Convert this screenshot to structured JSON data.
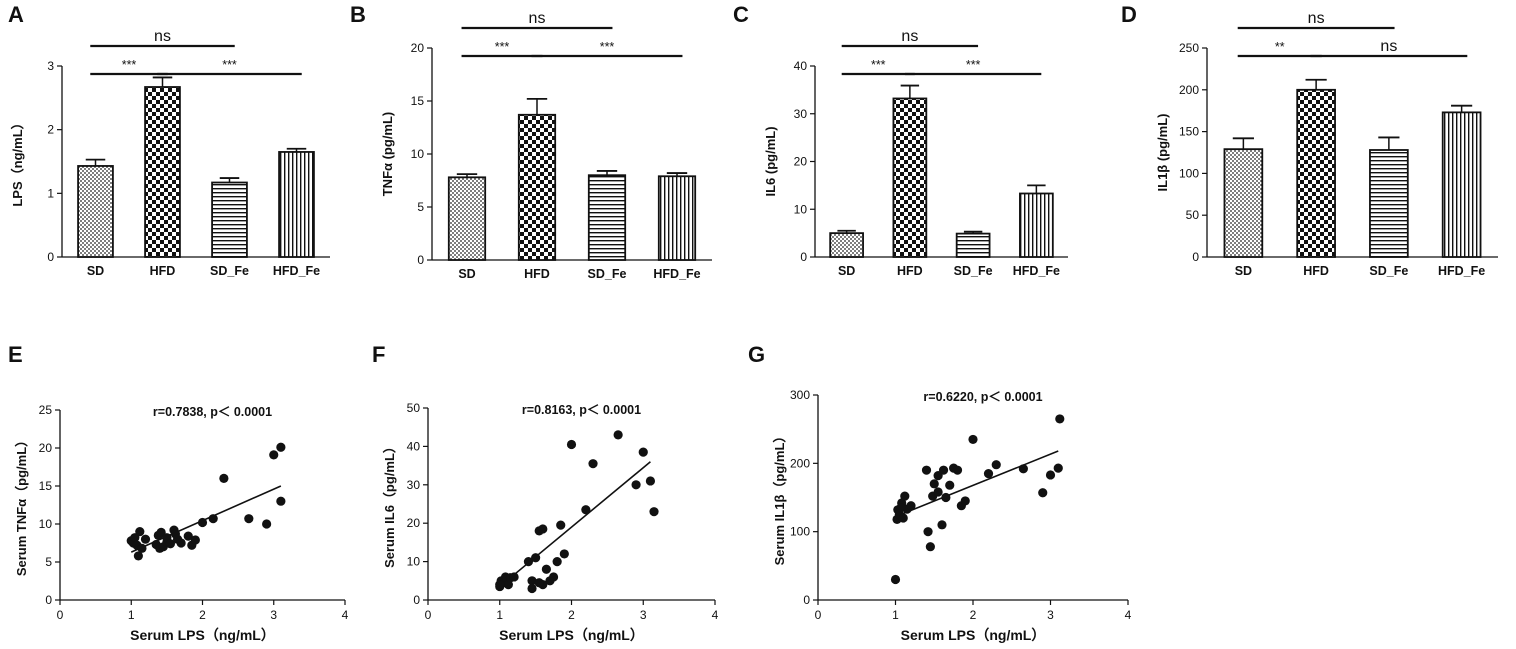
{
  "figure": {
    "shared": {
      "bar_categories": [
        "SD",
        "HFD",
        "SD_Fe",
        "HFD_Fe"
      ],
      "fill_patterns": [
        "dots",
        "checker",
        "horizontal",
        "vertical"
      ],
      "scatter_xlabel": "Serum LPS（ng/mL）",
      "scatter_xticks": [
        "0",
        "1",
        "2",
        "3",
        "4"
      ]
    },
    "stroke_color": "#111111",
    "bar_fill_color": "#ffffff"
  },
  "chart_data": [
    {
      "panel": "A",
      "type": "bar",
      "categories": [
        "SD",
        "HFD",
        "SD_Fe",
        "HFD_Fe"
      ],
      "values": [
        1.43,
        2.67,
        1.17,
        1.65
      ],
      "errors": [
        0.1,
        0.15,
        0.07,
        0.05
      ],
      "ylabel": "LPS（ng/mL）",
      "ylim": [
        0,
        3
      ],
      "yticks": [
        "0",
        "1",
        "2",
        "3"
      ],
      "comparisons": [
        {
          "label": "ns",
          "from": 0,
          "to": 2,
          "level": 1
        },
        {
          "label": "***",
          "from": 0,
          "to": 1,
          "level": 0
        },
        {
          "label": "***",
          "from": 1,
          "to": 3,
          "level": 0
        }
      ]
    },
    {
      "panel": "B",
      "type": "bar",
      "categories": [
        "SD",
        "HFD",
        "SD_Fe",
        "HFD_Fe"
      ],
      "values": [
        7.8,
        13.7,
        8.0,
        7.9
      ],
      "errors": [
        0.3,
        1.5,
        0.4,
        0.3
      ],
      "ylabel": "TNFα (pg/mL)",
      "ylim": [
        0,
        20
      ],
      "yticks": [
        "0",
        "5",
        "10",
        "15",
        "20"
      ],
      "comparisons": [
        {
          "label": "ns",
          "from": 0,
          "to": 2,
          "level": 1
        },
        {
          "label": "***",
          "from": 0,
          "to": 1,
          "level": 0
        },
        {
          "label": "***",
          "from": 1,
          "to": 3,
          "level": 0
        }
      ]
    },
    {
      "panel": "C",
      "type": "bar",
      "categories": [
        "SD",
        "HFD",
        "SD_Fe",
        "HFD_Fe"
      ],
      "values": [
        5.0,
        33.2,
        4.9,
        13.3
      ],
      "errors": [
        0.5,
        2.7,
        0.4,
        1.7
      ],
      "ylabel": "IL6 (pg/mL)",
      "ylim": [
        0,
        40
      ],
      "yticks": [
        "0",
        "10",
        "20",
        "30",
        "40"
      ],
      "comparisons": [
        {
          "label": "ns",
          "from": 0,
          "to": 2,
          "level": 1
        },
        {
          "label": "***",
          "from": 0,
          "to": 1,
          "level": 0
        },
        {
          "label": "***",
          "from": 1,
          "to": 3,
          "level": 0
        }
      ]
    },
    {
      "panel": "D",
      "type": "bar",
      "categories": [
        "SD",
        "HFD",
        "SD_Fe",
        "HFD_Fe"
      ],
      "values": [
        129,
        200,
        128,
        173
      ],
      "errors": [
        13,
        12,
        15,
        8
      ],
      "ylabel": "IL1β (pg/mL)",
      "ylim": [
        0,
        250
      ],
      "yticks": [
        "0",
        "50",
        "100",
        "150",
        "200",
        "250"
      ],
      "comparisons": [
        {
          "label": "ns",
          "from": 0,
          "to": 2,
          "level": 1
        },
        {
          "label": "**",
          "from": 0,
          "to": 1,
          "level": 0
        },
        {
          "label": "ns",
          "from": 1,
          "to": 3,
          "level": 0
        }
      ]
    },
    {
      "panel": "E",
      "type": "scatter",
      "xlabel": "Serum LPS（ng/mL）",
      "ylabel": "Serum TNFα（pg/mL）",
      "xlim": [
        0,
        4
      ],
      "ylim": [
        0,
        25
      ],
      "xticks": [
        "0",
        "1",
        "2",
        "3",
        "4"
      ],
      "yticks": [
        "0",
        "5",
        "10",
        "15",
        "20",
        "25"
      ],
      "annotation": "r=0.7838, p＜ 0.0001",
      "fit": {
        "x": [
          1.0,
          3.1
        ],
        "y": [
          6.3,
          15.0
        ]
      },
      "points": [
        [
          1.0,
          7.8
        ],
        [
          1.03,
          7.5
        ],
        [
          1.05,
          8.2
        ],
        [
          1.08,
          7.2
        ],
        [
          1.1,
          5.8
        ],
        [
          1.12,
          9.0
        ],
        [
          1.15,
          6.8
        ],
        [
          1.2,
          8.0
        ],
        [
          1.35,
          7.3
        ],
        [
          1.38,
          8.5
        ],
        [
          1.4,
          6.8
        ],
        [
          1.42,
          8.9
        ],
        [
          1.45,
          7.0
        ],
        [
          1.5,
          7.6
        ],
        [
          1.5,
          8.2
        ],
        [
          1.55,
          7.4
        ],
        [
          1.6,
          9.2
        ],
        [
          1.62,
          8.7
        ],
        [
          1.65,
          8.0
        ],
        [
          1.7,
          7.5
        ],
        [
          1.8,
          8.4
        ],
        [
          1.85,
          7.2
        ],
        [
          1.9,
          7.9
        ],
        [
          2.0,
          10.2
        ],
        [
          2.15,
          10.7
        ],
        [
          2.3,
          16.0
        ],
        [
          2.65,
          10.7
        ],
        [
          2.9,
          10.0
        ],
        [
          3.0,
          19.1
        ],
        [
          3.1,
          20.1
        ],
        [
          3.1,
          13.0
        ]
      ]
    },
    {
      "panel": "F",
      "type": "scatter",
      "xlabel": "Serum LPS（ng/mL）",
      "ylabel": "Serum IL6（pg/mL）",
      "xlim": [
        0,
        4
      ],
      "ylim": [
        0,
        50
      ],
      "xticks": [
        "0",
        "1",
        "2",
        "3",
        "4"
      ],
      "yticks": [
        "0",
        "10",
        "20",
        "30",
        "40",
        "50"
      ],
      "annotation": "r=0.8163, p＜ 0.0001",
      "fit": {
        "x": [
          1.0,
          3.1
        ],
        "y": [
          3.5,
          36.0
        ]
      },
      "points": [
        [
          1.0,
          3.5
        ],
        [
          1.02,
          5.0
        ],
        [
          1.05,
          4.5
        ],
        [
          1.08,
          6.0
        ],
        [
          1.1,
          5.5
        ],
        [
          1.12,
          4.0
        ],
        [
          1.15,
          5.8
        ],
        [
          1.2,
          6.0
        ],
        [
          1.4,
          10.0
        ],
        [
          1.45,
          5.0
        ],
        [
          1.45,
          3.0
        ],
        [
          1.5,
          11.0
        ],
        [
          1.55,
          18.0
        ],
        [
          1.6,
          18.5
        ],
        [
          1.6,
          4.0
        ],
        [
          1.65,
          8.0
        ],
        [
          1.7,
          5.0
        ],
        [
          1.75,
          6.0
        ],
        [
          1.8,
          10.0
        ],
        [
          1.85,
          19.5
        ],
        [
          1.9,
          12.0
        ],
        [
          2.0,
          40.5
        ],
        [
          2.2,
          23.5
        ],
        [
          2.3,
          35.5
        ],
        [
          2.65,
          43.0
        ],
        [
          2.9,
          30.0
        ],
        [
          3.0,
          38.5
        ],
        [
          3.1,
          31.0
        ],
        [
          3.15,
          23.0
        ],
        [
          1.55,
          4.5
        ],
        [
          1.0,
          4.0
        ]
      ]
    },
    {
      "panel": "G",
      "type": "scatter",
      "xlabel": "Serum LPS（ng/mL）",
      "ylabel": "Serum IL1β（pg/mL）",
      "xlim": [
        0,
        4
      ],
      "ylim": [
        0,
        300
      ],
      "xticks": [
        "0",
        "1",
        "2",
        "3",
        "4"
      ],
      "yticks": [
        "0",
        "100",
        "200",
        "300"
      ],
      "annotation": "r=0.6220, p＜ 0.0001",
      "fit": {
        "x": [
          1.0,
          3.1
        ],
        "y": [
          122,
          218
        ]
      },
      "points": [
        [
          1.0,
          30
        ],
        [
          1.02,
          118
        ],
        [
          1.03,
          132
        ],
        [
          1.05,
          125
        ],
        [
          1.08,
          142
        ],
        [
          1.1,
          120
        ],
        [
          1.12,
          152
        ],
        [
          1.15,
          133
        ],
        [
          1.2,
          138
        ],
        [
          1.4,
          190
        ],
        [
          1.42,
          100
        ],
        [
          1.45,
          78
        ],
        [
          1.48,
          152
        ],
        [
          1.5,
          170
        ],
        [
          1.55,
          158
        ],
        [
          1.55,
          182
        ],
        [
          1.6,
          110
        ],
        [
          1.62,
          190
        ],
        [
          1.65,
          150
        ],
        [
          1.7,
          168
        ],
        [
          1.75,
          193
        ],
        [
          1.8,
          190
        ],
        [
          1.85,
          138
        ],
        [
          1.9,
          145
        ],
        [
          2.0,
          235
        ],
        [
          2.2,
          185
        ],
        [
          2.3,
          198
        ],
        [
          2.65,
          192
        ],
        [
          2.9,
          157
        ],
        [
          3.0,
          183
        ],
        [
          3.1,
          193
        ],
        [
          3.12,
          265
        ],
        [
          1.07,
          135
        ]
      ]
    }
  ]
}
